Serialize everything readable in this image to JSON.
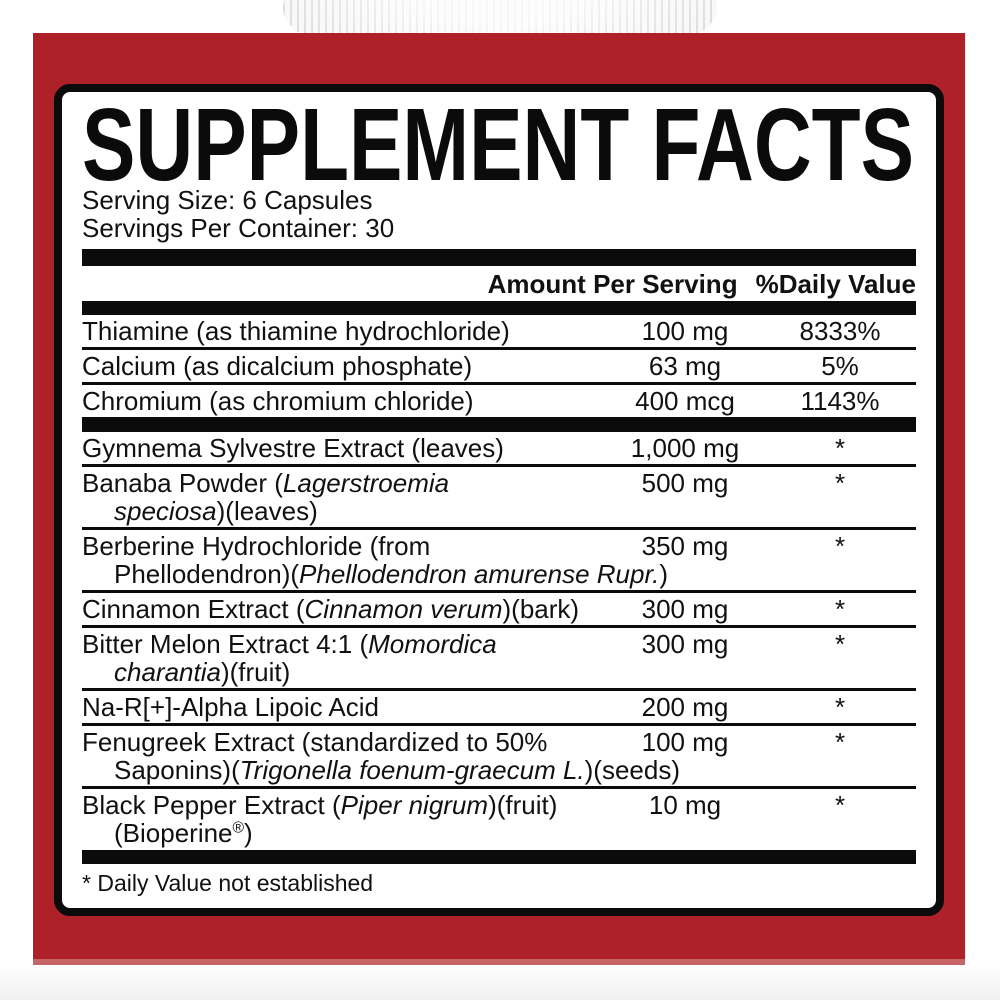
{
  "page": {
    "title": "SUPPLEMENT FACTS",
    "serving_size": "Serving Size: 6 Capsules",
    "servings_per_container": "Servings Per Container: 30"
  },
  "table": {
    "header": {
      "amount_label": "Amount Per Serving",
      "dv_label": "%Daily Value"
    },
    "groups": [
      {
        "rows": [
          {
            "name": [
              {
                "t": "Thiamine (as thiamine hydrochloride)"
              }
            ],
            "amount": "100 mg",
            "dv": "8333%"
          },
          {
            "name": [
              {
                "t": "Calcium (as dicalcium phosphate)"
              }
            ],
            "amount": "63 mg",
            "dv": "5%"
          },
          {
            "name": [
              {
                "t": "Chromium (as chromium chloride)"
              }
            ],
            "amount": "400 mcg",
            "dv": "1143%"
          }
        ]
      },
      {
        "rows": [
          {
            "name": [
              {
                "t": "Gymnema Sylvestre Extract (leaves)"
              }
            ],
            "amount": "1,000 mg",
            "dv": "*"
          },
          {
            "name": [
              {
                "t": "Banaba Powder ("
              },
              {
                "t": "Lagerstroemia",
                "i": true
              },
              {
                "br": true
              },
              {
                "t": "speciosa",
                "i": true
              },
              {
                "t": ")(leaves)"
              }
            ],
            "amount": "500 mg",
            "dv": "*"
          },
          {
            "name": [
              {
                "t": "Berberine Hydrochloride (from"
              },
              {
                "br": true
              },
              {
                "t": "Phellodendron)("
              },
              {
                "t": "Phellodendron amurense Rupr.",
                "i": true
              },
              {
                "t": ")"
              }
            ],
            "amount": "350 mg",
            "dv": "*"
          },
          {
            "name": [
              {
                "t": "Cinnamon Extract ("
              },
              {
                "t": "Cinnamon verum",
                "i": true
              },
              {
                "t": ")(bark)"
              }
            ],
            "amount": "300 mg",
            "dv": "*"
          },
          {
            "name": [
              {
                "t": "Bitter Melon Extract 4:1 ("
              },
              {
                "t": "Momordica",
                "i": true
              },
              {
                "br": true
              },
              {
                "t": "charantia",
                "i": true
              },
              {
                "t": ")(fruit)"
              }
            ],
            "amount": "300 mg",
            "dv": "*"
          },
          {
            "name": [
              {
                "t": "Na-R[+]-Alpha Lipoic Acid"
              }
            ],
            "amount": "200 mg",
            "dv": "*"
          },
          {
            "name": [
              {
                "t": "Fenugreek Extract (standardized to 50%"
              },
              {
                "br": true
              },
              {
                "t": "Saponins)("
              },
              {
                "t": "Trigonella foenum-graecum L.",
                "i": true
              },
              {
                "t": ")(seeds)"
              }
            ],
            "amount": "100 mg",
            "dv": "*"
          },
          {
            "name": [
              {
                "t": "Black Pepper Extract ("
              },
              {
                "t": "Piper nigrum",
                "i": true
              },
              {
                "t": ")(fruit)"
              },
              {
                "br": true
              },
              {
                "t": "(Bioperine"
              },
              {
                "t": "®",
                "sup": true
              },
              {
                "t": ")"
              }
            ],
            "amount": "10 mg",
            "dv": "*"
          }
        ]
      }
    ],
    "footnote": "* Daily Value not established"
  },
  "colors": {
    "label_red": "#AE2128",
    "panel_border_black": "#0B0B0B",
    "panel_background": "#FFFFFF",
    "cap_gray": "#E8E8E8"
  }
}
